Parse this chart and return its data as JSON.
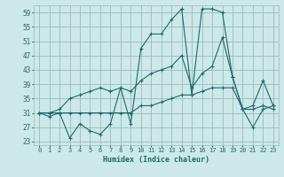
{
  "xlabel": "Humidex (Indice chaleur)",
  "bg_color": "#cce8e8",
  "grid_color": "#99bbbb",
  "line_color": "#1a6b6b",
  "xlim": [
    -0.5,
    23.5
  ],
  "ylim": [
    22,
    61
  ],
  "xticks": [
    0,
    1,
    2,
    3,
    4,
    5,
    6,
    7,
    8,
    9,
    10,
    11,
    12,
    13,
    14,
    15,
    16,
    17,
    18,
    19,
    20,
    21,
    22,
    23
  ],
  "yticks": [
    23,
    27,
    31,
    35,
    39,
    43,
    47,
    51,
    55,
    59
  ],
  "series": [
    [
      31,
      30,
      31,
      24,
      28,
      26,
      25,
      28,
      38,
      28,
      49,
      53,
      53,
      57,
      60,
      36,
      60,
      60,
      59,
      41,
      32,
      33,
      40,
      33
    ],
    [
      31,
      31,
      32,
      35,
      36,
      37,
      38,
      37,
      38,
      37,
      40,
      42,
      43,
      44,
      47,
      38,
      42,
      44,
      52,
      41,
      32,
      32,
      33,
      32
    ],
    [
      31,
      31,
      31,
      31,
      31,
      31,
      31,
      31,
      31,
      31,
      33,
      33,
      34,
      35,
      36,
      36,
      37,
      38,
      38,
      38,
      32,
      27,
      32,
      33
    ]
  ]
}
